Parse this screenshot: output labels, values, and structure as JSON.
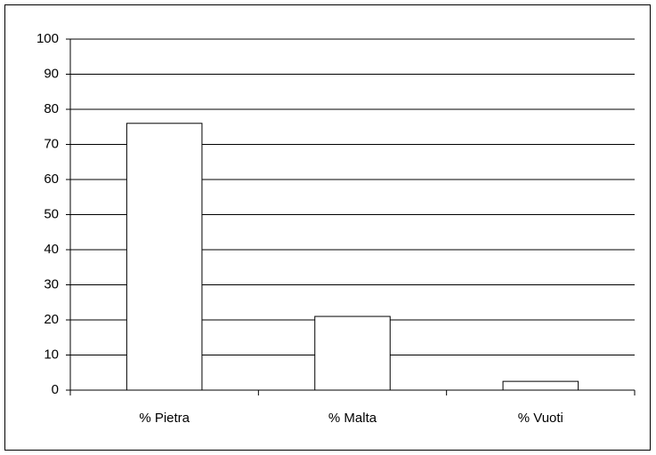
{
  "chart_data": {
    "type": "bar",
    "categories": [
      "% Pietra",
      "% Malta",
      "% Vuoti"
    ],
    "values": [
      76,
      21,
      2.5
    ],
    "color": "#ffffff",
    "ylim": [
      0,
      100
    ],
    "yticks": [
      0,
      10,
      20,
      30,
      40,
      50,
      60,
      70,
      80,
      90,
      100
    ],
    "grid": true
  }
}
